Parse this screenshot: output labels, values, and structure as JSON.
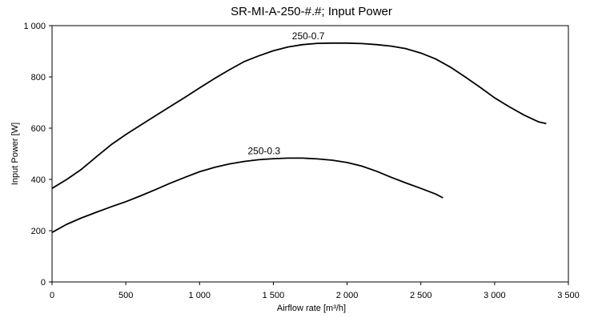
{
  "chart_data": {
    "type": "line",
    "title": "SR-MI-A-250-#.#; Input Power",
    "xlabel": "Airflow rate [m³/h]",
    "ylabel": "Input Power [W]",
    "xlim": [
      0,
      3500
    ],
    "ylim": [
      0,
      1000
    ],
    "xticks": [
      0,
      500,
      1000,
      1500,
      2000,
      2500,
      3000,
      3500
    ],
    "yticks": [
      0,
      200,
      400,
      600,
      800,
      1000
    ],
    "xtick_labels": [
      "0",
      "500",
      "1 000",
      "1 500",
      "2 000",
      "2 500",
      "3 000",
      "3 500"
    ],
    "ytick_labels": [
      "0",
      "200",
      "400",
      "600",
      "800",
      "1 000"
    ],
    "grid": false,
    "series": [
      {
        "name": "250-0.7",
        "color": "#000000",
        "x": [
          0,
          100,
          200,
          300,
          400,
          500,
          600,
          700,
          800,
          900,
          1000,
          1100,
          1200,
          1300,
          1400,
          1500,
          1600,
          1700,
          1800,
          1900,
          2000,
          2100,
          2200,
          2300,
          2400,
          2500,
          2600,
          2700,
          2800,
          2900,
          3000,
          3100,
          3200,
          3300,
          3350
        ],
        "y": [
          365,
          400,
          440,
          488,
          535,
          575,
          612,
          648,
          684,
          720,
          757,
          793,
          827,
          859,
          882,
          902,
          917,
          926,
          931,
          932,
          932,
          930,
          926,
          920,
          910,
          893,
          870,
          838,
          800,
          760,
          718,
          683,
          651,
          624,
          618
        ]
      },
      {
        "name": "250-0.3",
        "color": "#000000",
        "x": [
          0,
          100,
          200,
          300,
          400,
          500,
          600,
          700,
          800,
          900,
          1000,
          1100,
          1200,
          1300,
          1400,
          1500,
          1600,
          1700,
          1800,
          1900,
          2000,
          2100,
          2200,
          2300,
          2400,
          2500,
          2600,
          2650
        ],
        "y": [
          193,
          225,
          250,
          272,
          293,
          313,
          336,
          360,
          385,
          408,
          430,
          447,
          460,
          470,
          477,
          481,
          483,
          483,
          480,
          475,
          466,
          452,
          432,
          408,
          386,
          365,
          343,
          328
        ]
      }
    ]
  }
}
